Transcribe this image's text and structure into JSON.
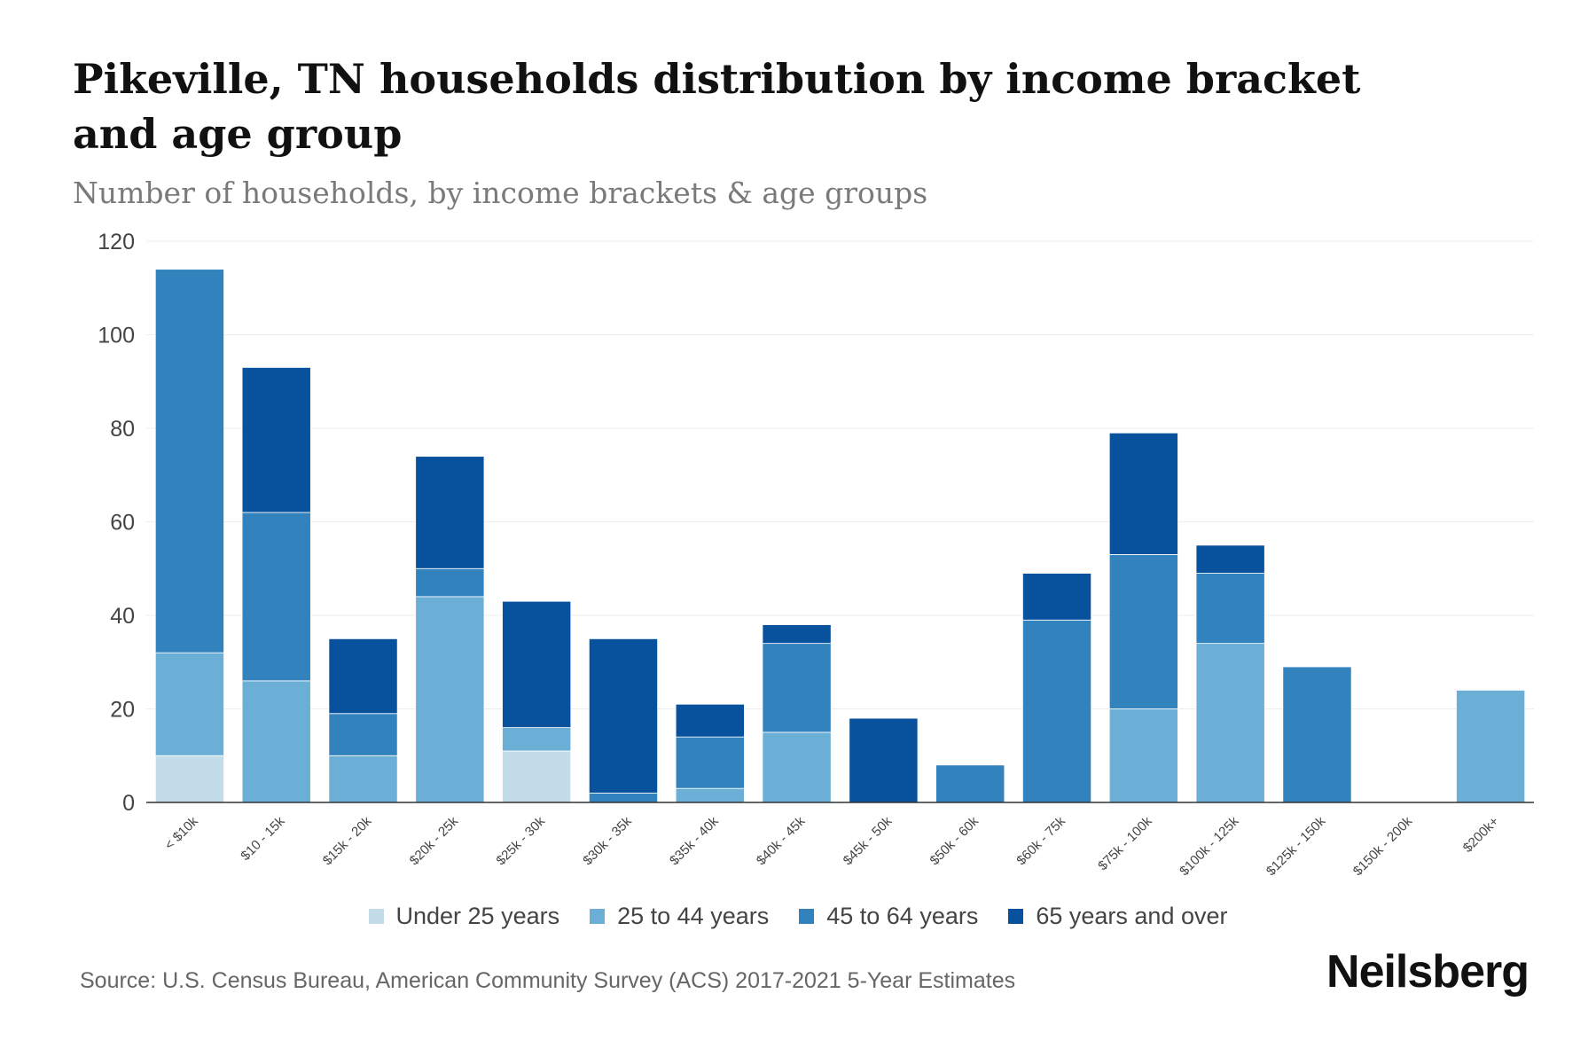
{
  "chart_data": {
    "type": "bar",
    "stacked": true,
    "title": "Pikeville, TN households distribution by income bracket and age group",
    "subtitle": "Number of households, by income brackets & age groups",
    "xlabel": "",
    "ylabel": "",
    "ylim": [
      0,
      120
    ],
    "yticks": [
      "0",
      "20",
      "40",
      "60",
      "80",
      "100",
      "120"
    ],
    "grid": true,
    "legend_position": "bottom",
    "categories": [
      "< $10k",
      "$10 - 15k",
      "$15k - 20k",
      "$20k - 25k",
      "$25k - 30k",
      "$30k - 35k",
      "$35k - 40k",
      "$40k - 45k",
      "$45k - 50k",
      "$50k - 60k",
      "$60k - 75k",
      "$75k - 100k",
      "$100k - 125k",
      "$125k - 150k",
      "$150k - 200k",
      "$200k+"
    ],
    "series": [
      {
        "name": "Under 25 years",
        "color": "#c2dcea",
        "values": [
          10,
          0,
          0,
          0,
          11,
          0,
          0,
          0,
          0,
          0,
          0,
          0,
          0,
          0,
          0,
          0
        ]
      },
      {
        "name": "25 to 44 years",
        "color": "#6baed6",
        "values": [
          22,
          26,
          10,
          44,
          5,
          0,
          3,
          15,
          0,
          0,
          0,
          20,
          34,
          0,
          0,
          24
        ]
      },
      {
        "name": "45 to 64 years",
        "color": "#3182bd",
        "values": [
          82,
          36,
          9,
          6,
          0,
          2,
          11,
          19,
          0,
          8,
          39,
          33,
          15,
          29,
          0,
          0
        ]
      },
      {
        "name": "65 years and over",
        "color": "#08519c",
        "values": [
          0,
          31,
          16,
          24,
          27,
          33,
          7,
          4,
          18,
          0,
          10,
          26,
          6,
          0,
          0,
          0
        ]
      }
    ]
  },
  "source": "Source: U.S. Census Bureau, American Community Survey (ACS) 2017-2021 5-Year Estimates",
  "brand": "Neilsberg"
}
